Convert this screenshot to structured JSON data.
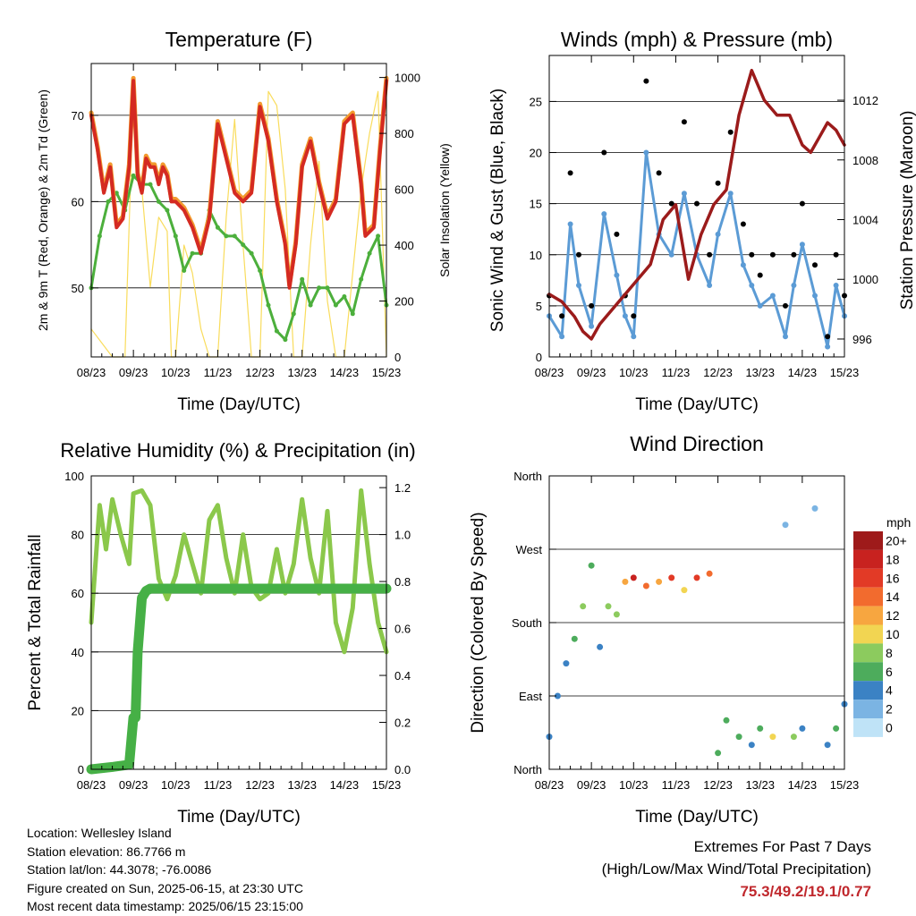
{
  "x_ticks": [
    "08/23",
    "09/23",
    "10/23",
    "11/23",
    "12/23",
    "13/23",
    "14/23",
    "15/23"
  ],
  "charts": [
    {
      "type": "line",
      "title": "Temperature (F)",
      "xlabel": "Time (Day/UTC)",
      "ylabel_left": "2m & 9m T (Red, Orange) & 2m Td (Green)",
      "ylabel_right": "Solar Insolation (Yellow)",
      "ylim_left": [
        42,
        76
      ],
      "yticks_left": [
        "50",
        "60",
        "70"
      ],
      "ylim_right": [
        0,
        1050
      ],
      "yticks_right": [
        "0",
        "200",
        "400",
        "600",
        "800",
        "1000"
      ],
      "colors": {
        "t2m": "#d42a22",
        "t9m": "#f29a2e",
        "td2m": "#4caf3c",
        "solar": "#f8d84a"
      },
      "series": [
        {
          "key": "t2m",
          "x": [
            0,
            0.15,
            0.3,
            0.45,
            0.6,
            0.75,
            0.9,
            1.0,
            1.1,
            1.2,
            1.3,
            1.4,
            1.5,
            1.6,
            1.7,
            1.8,
            1.9,
            2.0,
            2.2,
            2.4,
            2.6,
            2.8,
            3.0,
            3.2,
            3.4,
            3.6,
            3.8,
            4.0,
            4.2,
            4.4,
            4.6,
            4.7,
            4.85,
            5.0,
            5.2,
            5.4,
            5.6,
            5.8,
            6.0,
            6.2,
            6.4,
            6.5,
            6.7,
            6.85,
            7.0
          ],
          "values": [
            70,
            66,
            61,
            64,
            57,
            58,
            64,
            74,
            63,
            61,
            65,
            64,
            64,
            62,
            64,
            63,
            60,
            60,
            59,
            57,
            54,
            58,
            69,
            65,
            61,
            60,
            61,
            71,
            67,
            60,
            55,
            50,
            55,
            64,
            67,
            62,
            58,
            60,
            69,
            70,
            62,
            56,
            57,
            66,
            74
          ]
        },
        {
          "key": "td2m",
          "x": [
            0,
            0.2,
            0.4,
            0.6,
            0.8,
            1.0,
            1.2,
            1.4,
            1.6,
            1.8,
            2.0,
            2.2,
            2.4,
            2.6,
            2.8,
            3.0,
            3.2,
            3.4,
            3.6,
            3.8,
            4.0,
            4.2,
            4.4,
            4.6,
            4.8,
            5.0,
            5.2,
            5.4,
            5.6,
            5.8,
            6.0,
            6.2,
            6.4,
            6.6,
            6.8,
            7.0
          ],
          "values": [
            50,
            56,
            60,
            61,
            59,
            63,
            62,
            62,
            60,
            59,
            56,
            52,
            54,
            54,
            59,
            57,
            56,
            56,
            55,
            54,
            52,
            48,
            45,
            44,
            47,
            51,
            48,
            50,
            50,
            48,
            49,
            47,
            51,
            54,
            56,
            48
          ]
        },
        {
          "key": "solar",
          "x": [
            0,
            0.5,
            0.8,
            1.0,
            1.05,
            1.2,
            1.4,
            1.6,
            1.8,
            1.9,
            2.0,
            2.2,
            2.4,
            2.6,
            2.8,
            3.0,
            3.2,
            3.4,
            3.6,
            3.8,
            4.0,
            4.2,
            4.4,
            4.6,
            4.8,
            5.0,
            5.2,
            5.4,
            5.6,
            5.8,
            6.0,
            6.2,
            6.4,
            6.6,
            6.8,
            7.0
          ],
          "values": [
            100,
            0,
            0,
            950,
            700,
            600,
            250,
            500,
            450,
            0,
            0,
            400,
            300,
            100,
            0,
            0,
            500,
            850,
            400,
            0,
            0,
            950,
            900,
            600,
            0,
            0,
            400,
            700,
            200,
            0,
            0,
            300,
            600,
            800,
            950,
            0
          ]
        }
      ]
    },
    {
      "type": "scatter",
      "title": "Winds (mph) & Pressure (mb)",
      "xlabel": "Time (Day/UTC)",
      "ylabel_left": "Sonic Wind & Gust (Blue, Black)",
      "ylabel_right": "Station Pressure (Maroon)",
      "ylim_left": [
        0,
        29.5
      ],
      "yticks_left": [
        "0",
        "5",
        "10",
        "15",
        "20",
        "25"
      ],
      "ylim_right": [
        994.8,
        1015
      ],
      "yticks_right": [
        "996",
        "1000",
        "1004",
        "1008",
        "1012"
      ],
      "colors": {
        "wind": "#5b9bd5",
        "gust": "#000000",
        "pressure": "#9b1b1b"
      },
      "series": [
        {
          "key": "gust",
          "x": [
            0,
            0.3,
            0.5,
            0.7,
            1.0,
            1.3,
            1.6,
            1.8,
            2.0,
            2.3,
            2.6,
            2.9,
            3.2,
            3.5,
            3.8,
            4.0,
            4.3,
            4.6,
            4.8,
            5.0,
            5.3,
            5.6,
            5.8,
            6.0,
            6.3,
            6.6,
            6.8,
            7.0
          ],
          "values": [
            6,
            4,
            18,
            10,
            5,
            20,
            12,
            6,
            4,
            27,
            18,
            15,
            23,
            15,
            10,
            17,
            22,
            13,
            10,
            8,
            10,
            5,
            10,
            15,
            9,
            2,
            10,
            6
          ]
        },
        {
          "key": "wind",
          "x": [
            0,
            0.3,
            0.5,
            0.7,
            1.0,
            1.3,
            1.6,
            1.8,
            2.0,
            2.3,
            2.6,
            2.9,
            3.2,
            3.5,
            3.8,
            4.0,
            4.3,
            4.6,
            4.8,
            5.0,
            5.3,
            5.6,
            5.8,
            6.0,
            6.3,
            6.6,
            6.8,
            7.0
          ],
          "values": [
            4,
            2,
            13,
            7,
            3,
            14,
            8,
            4,
            2,
            20,
            12,
            10,
            16,
            10,
            7,
            12,
            16,
            9,
            7,
            5,
            6,
            2,
            7,
            11,
            6,
            1,
            7,
            4
          ]
        },
        {
          "key": "pressure",
          "x": [
            0,
            0.3,
            0.6,
            0.8,
            1.0,
            1.2,
            1.5,
            1.8,
            2.1,
            2.4,
            2.7,
            3.0,
            3.3,
            3.6,
            3.9,
            4.2,
            4.5,
            4.8,
            5.1,
            5.4,
            5.7,
            6.0,
            6.2,
            6.4,
            6.6,
            6.8,
            7.0
          ],
          "values": [
            999,
            998.5,
            997.5,
            996.5,
            996,
            997,
            998,
            999,
            1000,
            1001,
            1004,
            1005,
            1000,
            1003,
            1005,
            1006,
            1011,
            1014,
            1012,
            1011,
            1011,
            1009,
            1008.5,
            1009.5,
            1010.5,
            1010,
            1009
          ]
        }
      ]
    },
    {
      "type": "line",
      "title": "Relative Humidity (%) & Precipitation (in)",
      "xlabel": "Time (Day/UTC)",
      "ylabel_left": "Percent & Total Rainfall",
      "ylim_left": [
        0,
        100
      ],
      "yticks_left": [
        "0",
        "20",
        "40",
        "60",
        "80",
        "100"
      ],
      "ylim_right": [
        0,
        1.25
      ],
      "yticks_right": [
        "0.0",
        "0.2",
        "0.4",
        "0.6",
        "0.8",
        "1.0",
        "1.2"
      ],
      "colors": {
        "rh": "#8bc84b",
        "precip": "#46b046"
      },
      "series": [
        {
          "key": "rh",
          "x": [
            0,
            0.2,
            0.35,
            0.5,
            0.7,
            0.9,
            1.0,
            1.2,
            1.4,
            1.6,
            1.8,
            2.0,
            2.2,
            2.4,
            2.6,
            2.8,
            3.0,
            3.2,
            3.4,
            3.6,
            3.8,
            4.0,
            4.2,
            4.4,
            4.6,
            4.8,
            5.0,
            5.2,
            5.4,
            5.6,
            5.8,
            6.0,
            6.2,
            6.4,
            6.6,
            6.8,
            7.0
          ],
          "values": [
            50,
            90,
            75,
            92,
            80,
            70,
            94,
            95,
            90,
            65,
            58,
            66,
            80,
            70,
            60,
            85,
            90,
            72,
            60,
            80,
            62,
            58,
            60,
            75,
            60,
            70,
            92,
            72,
            60,
            88,
            50,
            40,
            55,
            95,
            70,
            50,
            40
          ]
        },
        {
          "key": "precip",
          "x": [
            0,
            0.5,
            0.9,
            1.0,
            1.05,
            1.1,
            1.2,
            1.3,
            1.4,
            2.0,
            3.0,
            4.0,
            5.0,
            6.0,
            7.0
          ],
          "values": [
            0,
            0.01,
            0.02,
            0.22,
            0.22,
            0.5,
            0.73,
            0.76,
            0.77,
            0.77,
            0.77,
            0.77,
            0.77,
            0.77,
            0.77
          ]
        }
      ]
    },
    {
      "type": "scatter",
      "title": "Wind Direction",
      "xlabel": "Time (Day/UTC)",
      "ylabel_left": "Direction (Colored By Speed)",
      "ylim_left": [
        0,
        360
      ],
      "yticks_left": [
        "North",
        "East",
        "South",
        "West",
        "North"
      ],
      "colorbar": {
        "unit": "mph",
        "labels": [
          "20+",
          "18",
          "16",
          "14",
          "12",
          "10",
          "8",
          "6",
          "4",
          "2",
          "0"
        ],
        "colors": [
          "#9e1a1a",
          "#c8221f",
          "#e23a26",
          "#f26b2e",
          "#f7a640",
          "#f2d552",
          "#8ccb5e",
          "#4dac5c",
          "#3b82c4",
          "#7bb4e3",
          "#bfe3f7"
        ]
      },
      "series": [
        {
          "key": "direction",
          "x": [
            0,
            0.2,
            0.4,
            0.6,
            0.8,
            1.0,
            1.2,
            1.4,
            1.6,
            1.8,
            2.0,
            2.3,
            2.6,
            2.9,
            3.2,
            3.5,
            3.8,
            4.0,
            4.2,
            4.5,
            4.8,
            5.0,
            5.3,
            5.6,
            5.8,
            6.0,
            6.3,
            6.6,
            6.8,
            7.0
          ],
          "values": [
            40,
            90,
            130,
            160,
            200,
            250,
            150,
            200,
            190,
            230,
            235,
            225,
            230,
            235,
            220,
            235,
            240,
            20,
            60,
            40,
            30,
            50,
            40,
            300,
            40,
            50,
            320,
            30,
            50,
            80
          ],
          "speeds": [
            3,
            3,
            4,
            6,
            8,
            6,
            4,
            7,
            8,
            12,
            17,
            14,
            12,
            15,
            10,
            16,
            14,
            5,
            6,
            6,
            4,
            5,
            9,
            2,
            8,
            4,
            2,
            4,
            6,
            4
          ]
        }
      ]
    }
  ],
  "info": {
    "location": "Location: Wellesley Island",
    "elevation": "Station elevation: 86.7766 m",
    "latlon": "Station lat/lon: 44.3078; -76.0086",
    "created": "Figure created on Sun, 2025-06-15, at 23:30 UTC",
    "latest": "Most recent data timestamp: 2025/06/15 23:15:00"
  },
  "extremes": {
    "title": "Extremes For Past 7 Days",
    "subtitle": "(High/Low/Max Wind/Total Precipitation)",
    "values": "75.3/49.2/19.1/0.77",
    "value_color": "#c0282d"
  }
}
